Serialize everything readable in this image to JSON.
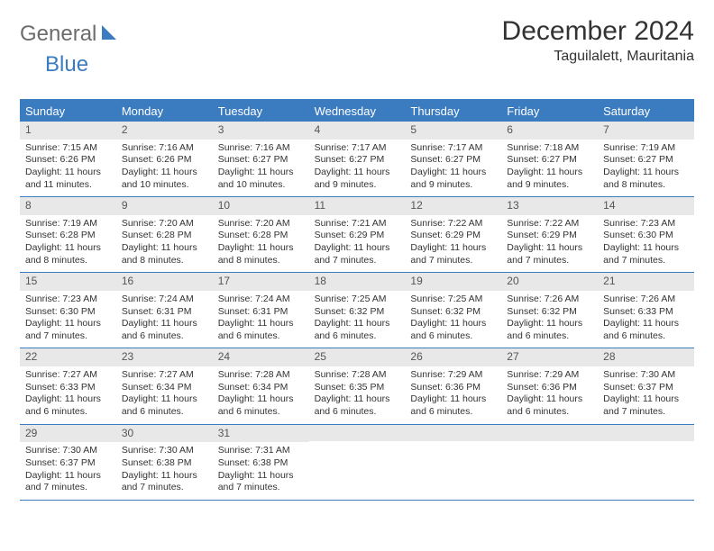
{
  "logo": {
    "text1": "General",
    "text2": "Blue"
  },
  "title": "December 2024",
  "location": "Taguilalett, Mauritania",
  "colors": {
    "header_bg": "#3b7bbf",
    "header_text": "#ffffff",
    "daynum_bg": "#e8e8e8",
    "body_text": "#333333",
    "logo_gray": "#6c6c6c",
    "logo_blue": "#3b7bbf",
    "border": "#3b7bbf"
  },
  "day_labels": [
    "Sunday",
    "Monday",
    "Tuesday",
    "Wednesday",
    "Thursday",
    "Friday",
    "Saturday"
  ],
  "weeks": [
    [
      {
        "num": "1",
        "sunrise": "Sunrise: 7:15 AM",
        "sunset": "Sunset: 6:26 PM",
        "daylight1": "Daylight: 11 hours",
        "daylight2": "and 11 minutes."
      },
      {
        "num": "2",
        "sunrise": "Sunrise: 7:16 AM",
        "sunset": "Sunset: 6:26 PM",
        "daylight1": "Daylight: 11 hours",
        "daylight2": "and 10 minutes."
      },
      {
        "num": "3",
        "sunrise": "Sunrise: 7:16 AM",
        "sunset": "Sunset: 6:27 PM",
        "daylight1": "Daylight: 11 hours",
        "daylight2": "and 10 minutes."
      },
      {
        "num": "4",
        "sunrise": "Sunrise: 7:17 AM",
        "sunset": "Sunset: 6:27 PM",
        "daylight1": "Daylight: 11 hours",
        "daylight2": "and 9 minutes."
      },
      {
        "num": "5",
        "sunrise": "Sunrise: 7:17 AM",
        "sunset": "Sunset: 6:27 PM",
        "daylight1": "Daylight: 11 hours",
        "daylight2": "and 9 minutes."
      },
      {
        "num": "6",
        "sunrise": "Sunrise: 7:18 AM",
        "sunset": "Sunset: 6:27 PM",
        "daylight1": "Daylight: 11 hours",
        "daylight2": "and 9 minutes."
      },
      {
        "num": "7",
        "sunrise": "Sunrise: 7:19 AM",
        "sunset": "Sunset: 6:27 PM",
        "daylight1": "Daylight: 11 hours",
        "daylight2": "and 8 minutes."
      }
    ],
    [
      {
        "num": "8",
        "sunrise": "Sunrise: 7:19 AM",
        "sunset": "Sunset: 6:28 PM",
        "daylight1": "Daylight: 11 hours",
        "daylight2": "and 8 minutes."
      },
      {
        "num": "9",
        "sunrise": "Sunrise: 7:20 AM",
        "sunset": "Sunset: 6:28 PM",
        "daylight1": "Daylight: 11 hours",
        "daylight2": "and 8 minutes."
      },
      {
        "num": "10",
        "sunrise": "Sunrise: 7:20 AM",
        "sunset": "Sunset: 6:28 PM",
        "daylight1": "Daylight: 11 hours",
        "daylight2": "and 8 minutes."
      },
      {
        "num": "11",
        "sunrise": "Sunrise: 7:21 AM",
        "sunset": "Sunset: 6:29 PM",
        "daylight1": "Daylight: 11 hours",
        "daylight2": "and 7 minutes."
      },
      {
        "num": "12",
        "sunrise": "Sunrise: 7:22 AM",
        "sunset": "Sunset: 6:29 PM",
        "daylight1": "Daylight: 11 hours",
        "daylight2": "and 7 minutes."
      },
      {
        "num": "13",
        "sunrise": "Sunrise: 7:22 AM",
        "sunset": "Sunset: 6:29 PM",
        "daylight1": "Daylight: 11 hours",
        "daylight2": "and 7 minutes."
      },
      {
        "num": "14",
        "sunrise": "Sunrise: 7:23 AM",
        "sunset": "Sunset: 6:30 PM",
        "daylight1": "Daylight: 11 hours",
        "daylight2": "and 7 minutes."
      }
    ],
    [
      {
        "num": "15",
        "sunrise": "Sunrise: 7:23 AM",
        "sunset": "Sunset: 6:30 PM",
        "daylight1": "Daylight: 11 hours",
        "daylight2": "and 7 minutes."
      },
      {
        "num": "16",
        "sunrise": "Sunrise: 7:24 AM",
        "sunset": "Sunset: 6:31 PM",
        "daylight1": "Daylight: 11 hours",
        "daylight2": "and 6 minutes."
      },
      {
        "num": "17",
        "sunrise": "Sunrise: 7:24 AM",
        "sunset": "Sunset: 6:31 PM",
        "daylight1": "Daylight: 11 hours",
        "daylight2": "and 6 minutes."
      },
      {
        "num": "18",
        "sunrise": "Sunrise: 7:25 AM",
        "sunset": "Sunset: 6:32 PM",
        "daylight1": "Daylight: 11 hours",
        "daylight2": "and 6 minutes."
      },
      {
        "num": "19",
        "sunrise": "Sunrise: 7:25 AM",
        "sunset": "Sunset: 6:32 PM",
        "daylight1": "Daylight: 11 hours",
        "daylight2": "and 6 minutes."
      },
      {
        "num": "20",
        "sunrise": "Sunrise: 7:26 AM",
        "sunset": "Sunset: 6:32 PM",
        "daylight1": "Daylight: 11 hours",
        "daylight2": "and 6 minutes."
      },
      {
        "num": "21",
        "sunrise": "Sunrise: 7:26 AM",
        "sunset": "Sunset: 6:33 PM",
        "daylight1": "Daylight: 11 hours",
        "daylight2": "and 6 minutes."
      }
    ],
    [
      {
        "num": "22",
        "sunrise": "Sunrise: 7:27 AM",
        "sunset": "Sunset: 6:33 PM",
        "daylight1": "Daylight: 11 hours",
        "daylight2": "and 6 minutes."
      },
      {
        "num": "23",
        "sunrise": "Sunrise: 7:27 AM",
        "sunset": "Sunset: 6:34 PM",
        "daylight1": "Daylight: 11 hours",
        "daylight2": "and 6 minutes."
      },
      {
        "num": "24",
        "sunrise": "Sunrise: 7:28 AM",
        "sunset": "Sunset: 6:34 PM",
        "daylight1": "Daylight: 11 hours",
        "daylight2": "and 6 minutes."
      },
      {
        "num": "25",
        "sunrise": "Sunrise: 7:28 AM",
        "sunset": "Sunset: 6:35 PM",
        "daylight1": "Daylight: 11 hours",
        "daylight2": "and 6 minutes."
      },
      {
        "num": "26",
        "sunrise": "Sunrise: 7:29 AM",
        "sunset": "Sunset: 6:36 PM",
        "daylight1": "Daylight: 11 hours",
        "daylight2": "and 6 minutes."
      },
      {
        "num": "27",
        "sunrise": "Sunrise: 7:29 AM",
        "sunset": "Sunset: 6:36 PM",
        "daylight1": "Daylight: 11 hours",
        "daylight2": "and 6 minutes."
      },
      {
        "num": "28",
        "sunrise": "Sunrise: 7:30 AM",
        "sunset": "Sunset: 6:37 PM",
        "daylight1": "Daylight: 11 hours",
        "daylight2": "and 7 minutes."
      }
    ],
    [
      {
        "num": "29",
        "sunrise": "Sunrise: 7:30 AM",
        "sunset": "Sunset: 6:37 PM",
        "daylight1": "Daylight: 11 hours",
        "daylight2": "and 7 minutes."
      },
      {
        "num": "30",
        "sunrise": "Sunrise: 7:30 AM",
        "sunset": "Sunset: 6:38 PM",
        "daylight1": "Daylight: 11 hours",
        "daylight2": "and 7 minutes."
      },
      {
        "num": "31",
        "sunrise": "Sunrise: 7:31 AM",
        "sunset": "Sunset: 6:38 PM",
        "daylight1": "Daylight: 11 hours",
        "daylight2": "and 7 minutes."
      },
      {
        "empty": true
      },
      {
        "empty": true
      },
      {
        "empty": true
      },
      {
        "empty": true
      }
    ]
  ]
}
